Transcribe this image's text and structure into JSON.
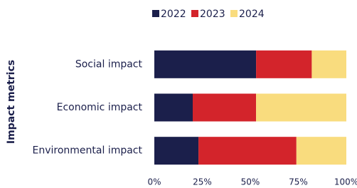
{
  "chart_data": {
    "type": "stacked-barh",
    "y_label": "Impact metrics",
    "categories": [
      "Social impact",
      "Economic impact",
      "Environmental impact"
    ],
    "series": [
      {
        "name": "2022",
        "color": "#1b1f4b",
        "values": [
          53,
          20,
          23
        ]
      },
      {
        "name": "2023",
        "color": "#d3242b",
        "values": [
          29,
          33,
          51
        ]
      },
      {
        "name": "2024",
        "color": "#f9dc7e",
        "values": [
          18,
          47,
          26
        ]
      }
    ],
    "xlim": [
      0,
      100
    ],
    "xticks": [
      {
        "value": 0,
        "label": "0%"
      },
      {
        "value": 25,
        "label": "25%"
      },
      {
        "value": 50,
        "label": "50%"
      },
      {
        "value": 75,
        "label": "75%"
      },
      {
        "value": 100,
        "label": "100%"
      }
    ],
    "legend": "top"
  }
}
